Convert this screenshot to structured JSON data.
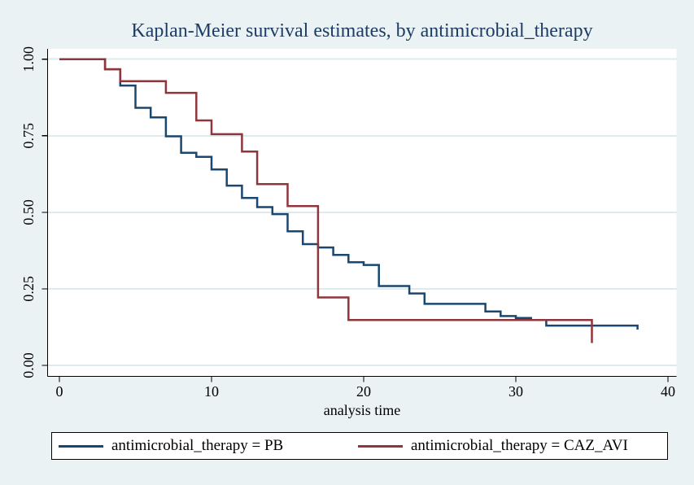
{
  "colors": {
    "background": "#eaf2f3",
    "plot_background": "#ffffff",
    "grid": "#dfeaee",
    "axis": "#000000",
    "title_text": "#1e3c64",
    "tick_text": "#000000"
  },
  "chart_data": {
    "type": "line",
    "subtype": "kaplan-meier-step",
    "title": "Kaplan-Meier survival estimates, by antimicrobial_therapy",
    "xlabel": "analysis time",
    "ylabel": "",
    "xlim": [
      0,
      40
    ],
    "ylim": [
      0,
      1
    ],
    "x_ticks": [
      0,
      10,
      20,
      30,
      40
    ],
    "y_ticks": [
      "0.00",
      "0.25",
      "0.50",
      "0.75",
      "1.00"
    ],
    "grid": "horizontal",
    "legend_position": "bottom",
    "series": [
      {
        "key": "pb",
        "name": "antimicrobial_therapy = PB",
        "color": "#1a476f",
        "points": [
          [
            0,
            1.0
          ],
          [
            3,
            0.967
          ],
          [
            4,
            0.914
          ],
          [
            5,
            0.841
          ],
          [
            6,
            0.81
          ],
          [
            7,
            0.748
          ],
          [
            8,
            0.694
          ],
          [
            9,
            0.681
          ],
          [
            10,
            0.64
          ],
          [
            11,
            0.587
          ],
          [
            12,
            0.547
          ],
          [
            13,
            0.517
          ],
          [
            14,
            0.494
          ],
          [
            15,
            0.438
          ],
          [
            16,
            0.396
          ],
          [
            17,
            0.385
          ],
          [
            18,
            0.361
          ],
          [
            19,
            0.337
          ],
          [
            20,
            0.328
          ],
          [
            21,
            0.259
          ],
          [
            23,
            0.235
          ],
          [
            24,
            0.201
          ],
          [
            28,
            0.176
          ],
          [
            29,
            0.161
          ],
          [
            30,
            0.155
          ],
          [
            31,
            0.148
          ],
          [
            32,
            0.13
          ],
          [
            38,
            0.117
          ]
        ]
      },
      {
        "key": "caz-avi",
        "name": "antimicrobial_therapy = CAZ_AVI",
        "color": "#90353b",
        "points": [
          [
            0,
            1.0
          ],
          [
            3,
            0.967
          ],
          [
            4,
            0.928
          ],
          [
            7,
            0.89
          ],
          [
            9,
            0.8
          ],
          [
            10,
            0.755
          ],
          [
            12,
            0.698
          ],
          [
            13,
            0.592
          ],
          [
            15,
            0.52
          ],
          [
            17,
            0.222
          ],
          [
            19,
            0.148
          ],
          [
            35,
            0.073
          ]
        ]
      }
    ]
  }
}
